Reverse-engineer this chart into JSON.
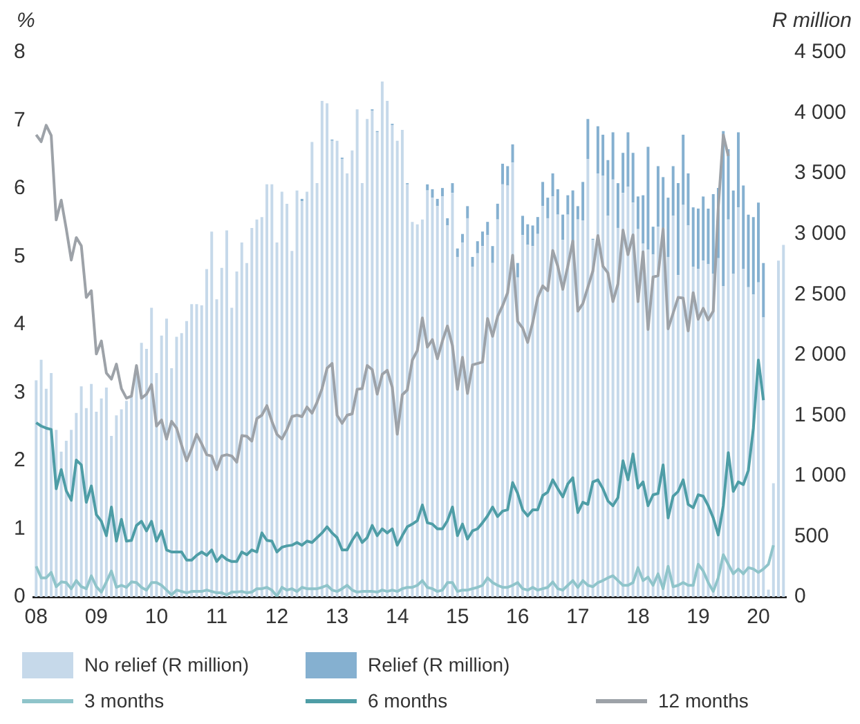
{
  "chart_data": {
    "type": "bar",
    "ylabel": "%",
    "y2label": "R million",
    "categories": [
      "08",
      null,
      null,
      null,
      null,
      null,
      null,
      null,
      null,
      null,
      null,
      null,
      "09",
      null,
      null,
      null,
      null,
      null,
      null,
      null,
      null,
      null,
      null,
      null,
      "10",
      null,
      null,
      null,
      null,
      null,
      null,
      null,
      null,
      null,
      null,
      null,
      "11",
      null,
      null,
      null,
      null,
      null,
      null,
      null,
      null,
      null,
      null,
      null,
      "12",
      null,
      null,
      null,
      null,
      null,
      null,
      null,
      null,
      null,
      null,
      null,
      "13",
      null,
      null,
      null,
      null,
      null,
      null,
      null,
      null,
      null,
      null,
      null,
      "14",
      null,
      null,
      null,
      null,
      null,
      null,
      null,
      null,
      null,
      null,
      null,
      "15",
      null,
      null,
      null,
      null,
      null,
      null,
      null,
      null,
      null,
      null,
      null,
      "16",
      null,
      null,
      null,
      null,
      null,
      null,
      null,
      null,
      null,
      null,
      null,
      "17",
      null,
      null,
      null,
      null,
      null,
      null,
      null,
      null,
      null,
      null,
      null,
      "18",
      null,
      null,
      null,
      null,
      null,
      null,
      null,
      null,
      null,
      null,
      null,
      "19",
      null,
      null,
      null,
      null,
      null,
      null,
      null,
      null,
      null,
      null,
      null,
      "20",
      null,
      null,
      null,
      null,
      null
    ],
    "stacked": true,
    "grid": false,
    "legend": "bottom",
    "marker": "none",
    "line_style": "solid",
    "ylim": [
      0,
      8
    ],
    "yticks": [
      0,
      1,
      2,
      3,
      4,
      5,
      6,
      7,
      8
    ],
    "y2lim": [
      0,
      4500
    ],
    "y2ticks": [
      0,
      500,
      {
        "value": 1000,
        "label": "1 000"
      },
      {
        "value": 1500,
        "label": "1 500"
      },
      {
        "value": 2000,
        "label": "2 000"
      },
      {
        "value": 2500,
        "label": "2 500"
      },
      {
        "value": 3000,
        "label": "3 000"
      },
      {
        "value": 3500,
        "label": "3 500"
      },
      {
        "value": 4000,
        "label": "4 000"
      },
      {
        "value": 4500,
        "label": "4 500"
      }
    ],
    "series": [
      {
        "name": "No relief (R million)",
        "axis": "y2",
        "color": "#c6d9ea",
        "values": [
          1790,
          1960,
          1720,
          1850,
          1380,
          1200,
          1290,
          1380,
          1520,
          1740,
          1560,
          1760,
          1530,
          1640,
          1730,
          1330,
          1500,
          1550,
          1620,
          1660,
          1880,
          2100,
          2050,
          2390,
          1850,
          2160,
          2300,
          1890,
          2150,
          2180,
          2280,
          2420,
          2420,
          2410,
          2710,
          3020,
          2460,
          2720,
          3030,
          2390,
          2690,
          2930,
          2760,
          3050,
          3120,
          3140,
          3410,
          3410,
          2930,
          3350,
          3250,
          2860,
          3360,
          3270,
          3350,
          3760,
          3420,
          4100,
          4080,
          3770,
          3770,
          3620,
          3500,
          3690,
          4030,
          3420,
          3950,
          4020,
          3840,
          4260,
          4100,
          3900,
          3770,
          3860,
          3410,
          3100,
          3080,
          3120,
          3360,
          3300,
          3230,
          3310,
          3070,
          3340,
          2810,
          2930,
          3130,
          2730,
          2840,
          2900,
          2990,
          2760,
          3120,
          3410,
          3400,
          3590,
          2640,
          2990,
          2910,
          2900,
          3000,
          3230,
          3130,
          3310,
          3160,
          2950,
          3160,
          2920,
          3120,
          3110,
          3620,
          2950,
          3500,
          3480,
          3150,
          3450,
          3050,
          3340,
          3390,
          3260,
          3040,
          2920,
          2870,
          2830,
          3060,
          3050,
          2810,
          3150,
          2660,
          3240,
          3070,
          2730,
          2710,
          2780,
          2750,
          2670,
          2800,
          2570,
          3120,
          2670,
          3220,
          2710,
          2560,
          2500,
          2600,
          2310,
          60,
          940,
          2780,
          2910
        ]
      },
      {
        "name": "Relief (R million)",
        "axis": "y2",
        "color": "#85b0d0",
        "values": [
          0,
          0,
          0,
          0,
          0,
          0,
          0,
          0,
          0,
          0,
          0,
          0,
          0,
          0,
          0,
          0,
          0,
          0,
          0,
          0,
          0,
          0,
          0,
          0,
          0,
          0,
          0,
          0,
          0,
          0,
          0,
          0,
          0,
          0,
          0,
          0,
          0,
          0,
          0,
          0,
          0,
          0,
          0,
          0,
          0,
          0,
          0,
          0,
          0,
          0,
          0,
          0,
          0,
          20,
          0,
          0,
          0,
          0,
          0,
          10,
          0,
          10,
          0,
          0,
          0,
          0,
          0,
          10,
          10,
          0,
          0,
          10,
          0,
          0,
          10,
          0,
          0,
          0,
          50,
          70,
          60,
          70,
          60,
          80,
          70,
          70,
          100,
          80,
          100,
          120,
          110,
          140,
          130,
          170,
          160,
          150,
          120,
          160,
          170,
          170,
          140,
          200,
          170,
          190,
          210,
          210,
          160,
          440,
          110,
          320,
          330,
          10,
          390,
          340,
          460,
          390,
          370,
          330,
          450,
          410,
          270,
          400,
          850,
          230,
          500,
          420,
          490,
          410,
          760,
          580,
          430,
          490,
          500,
          530,
          460,
          660,
          580,
          1280,
          580,
          690,
          620,
          690,
          600,
          640,
          660,
          450,
          0,
          0,
          0,
          0
        ]
      },
      {
        "name": "3 months",
        "type": "line",
        "color": "#8fc4ca",
        "values": [
          0.45,
          0.28,
          0.28,
          0.36,
          0.15,
          0.22,
          0.21,
          0.12,
          0.24,
          0.15,
          0.12,
          0.31,
          0.15,
          0.07,
          0.22,
          0.38,
          0.14,
          0.17,
          0.14,
          0.22,
          0.21,
          0.14,
          0.1,
          0.21,
          0.21,
          0.17,
          0.1,
          0.03,
          0.1,
          0.08,
          0.06,
          0.08,
          0.08,
          0.08,
          0.1,
          0.08,
          0.06,
          0.06,
          0.03,
          0.07,
          0.07,
          0.08,
          0.06,
          0.07,
          0.12,
          0.12,
          0.14,
          0.1,
          0.01,
          0.14,
          0.1,
          0.12,
          0.08,
          0.14,
          0.12,
          0.12,
          0.12,
          0.14,
          0.17,
          0.1,
          0.08,
          0.12,
          0.17,
          0.1,
          0.07,
          0.08,
          0.08,
          0.08,
          0.07,
          0.1,
          0.08,
          0.1,
          0.08,
          0.12,
          0.14,
          0.14,
          0.17,
          0.24,
          0.14,
          0.12,
          0.08,
          0.1,
          0.21,
          0.21,
          0.08,
          0.1,
          0.1,
          0.12,
          0.14,
          0.17,
          0.28,
          0.21,
          0.17,
          0.14,
          0.14,
          0.17,
          0.21,
          0.12,
          0.1,
          0.14,
          0.1,
          0.12,
          0.14,
          0.22,
          0.12,
          0.1,
          0.17,
          0.24,
          0.14,
          0.24,
          0.17,
          0.15,
          0.21,
          0.24,
          0.28,
          0.31,
          0.24,
          0.17,
          0.17,
          0.21,
          0.43,
          0.24,
          0.29,
          0.17,
          0.34,
          0.12,
          0.45,
          0.15,
          0.17,
          0.21,
          0.17,
          0.17,
          0.48,
          0.38,
          0.21,
          0.08,
          0.28,
          0.62,
          0.48,
          0.34,
          0.41,
          0.34,
          0.43,
          0.41,
          0.36,
          0.41,
          0.48,
          0.76,
          null,
          null
        ]
      },
      {
        "name": "6 months",
        "type": "line",
        "color": "#4e9da6",
        "values": [
          2.56,
          2.51,
          2.48,
          2.46,
          1.59,
          1.87,
          1.56,
          1.42,
          2.01,
          1.94,
          1.39,
          1.63,
          1.21,
          1.11,
          0.9,
          1.32,
          0.82,
          1.14,
          0.82,
          0.83,
          1.05,
          1.11,
          0.97,
          1.11,
          0.82,
          0.97,
          0.69,
          0.66,
          0.66,
          0.66,
          0.54,
          0.54,
          0.61,
          0.66,
          0.61,
          0.69,
          0.52,
          0.61,
          0.55,
          0.52,
          0.52,
          0.66,
          0.62,
          0.69,
          0.66,
          0.94,
          0.83,
          0.82,
          0.66,
          0.73,
          0.75,
          0.76,
          0.8,
          0.76,
          0.82,
          0.8,
          0.87,
          0.94,
          1.03,
          0.94,
          0.87,
          0.69,
          0.69,
          0.83,
          0.94,
          0.8,
          0.87,
          1.05,
          0.9,
          1.0,
          0.94,
          1.0,
          0.76,
          0.9,
          1.03,
          1.07,
          1.12,
          1.35,
          1.09,
          1.07,
          1.0,
          1.0,
          1.12,
          1.32,
          0.9,
          1.07,
          0.85,
          0.97,
          1.0,
          1.09,
          1.19,
          1.32,
          1.18,
          1.26,
          1.28,
          1.68,
          1.52,
          1.28,
          1.19,
          1.28,
          1.28,
          1.49,
          1.54,
          1.72,
          1.59,
          1.47,
          1.66,
          1.75,
          1.24,
          1.39,
          1.36,
          1.69,
          1.72,
          1.59,
          1.41,
          1.34,
          1.46,
          2.0,
          1.72,
          2.1,
          1.6,
          1.69,
          1.34,
          1.5,
          1.52,
          1.94,
          1.16,
          1.48,
          1.55,
          1.72,
          1.36,
          1.31,
          1.5,
          1.48,
          1.34,
          1.16,
          0.91,
          1.34,
          2.12,
          1.55,
          1.69,
          1.65,
          1.86,
          2.48,
          3.48,
          2.89,
          null,
          null,
          null,
          null
        ]
      },
      {
        "name": "12 months",
        "type": "line",
        "color": "#9da2a8",
        "values": [
          6.79,
          6.69,
          6.93,
          6.78,
          5.54,
          5.83,
          5.41,
          4.95,
          5.28,
          5.16,
          4.4,
          4.5,
          3.57,
          3.76,
          3.29,
          3.2,
          3.42,
          3.06,
          2.92,
          2.95,
          3.4,
          2.92,
          2.98,
          3.12,
          2.51,
          2.6,
          2.32,
          2.58,
          2.48,
          2.23,
          2.0,
          2.18,
          2.39,
          2.25,
          2.09,
          2.07,
          1.87,
          2.07,
          2.09,
          2.07,
          1.98,
          2.37,
          2.36,
          2.29,
          2.62,
          2.67,
          2.81,
          2.58,
          2.39,
          2.32,
          2.46,
          2.65,
          2.67,
          2.65,
          2.79,
          2.7,
          2.86,
          3.06,
          3.36,
          3.43,
          2.67,
          2.55,
          2.67,
          2.69,
          3.05,
          3.06,
          3.4,
          3.34,
          2.98,
          3.27,
          3.33,
          3.08,
          2.39,
          2.97,
          3.04,
          3.48,
          3.62,
          4.1,
          3.67,
          3.78,
          3.5,
          3.76,
          3.98,
          3.69,
          3.05,
          3.52,
          2.99,
          3.41,
          3.43,
          3.45,
          4.09,
          3.83,
          4.12,
          4.28,
          4.47,
          5.02,
          4.05,
          3.95,
          3.74,
          4.03,
          4.4,
          4.57,
          4.5,
          5.09,
          4.86,
          4.52,
          4.86,
          5.23,
          4.2,
          4.31,
          4.55,
          4.79,
          5.31,
          4.86,
          4.76,
          4.34,
          4.6,
          5.39,
          5.03,
          5.32,
          4.34,
          5.07,
          3.93,
          4.7,
          4.72,
          5.41,
          3.94,
          4.17,
          4.4,
          4.39,
          3.91,
          4.47,
          4.08,
          4.24,
          4.07,
          4.2,
          5.72,
          6.79,
          6.48,
          null,
          null,
          null,
          null,
          null,
          null,
          null,
          null,
          null,
          null,
          null
        ]
      }
    ]
  }
}
